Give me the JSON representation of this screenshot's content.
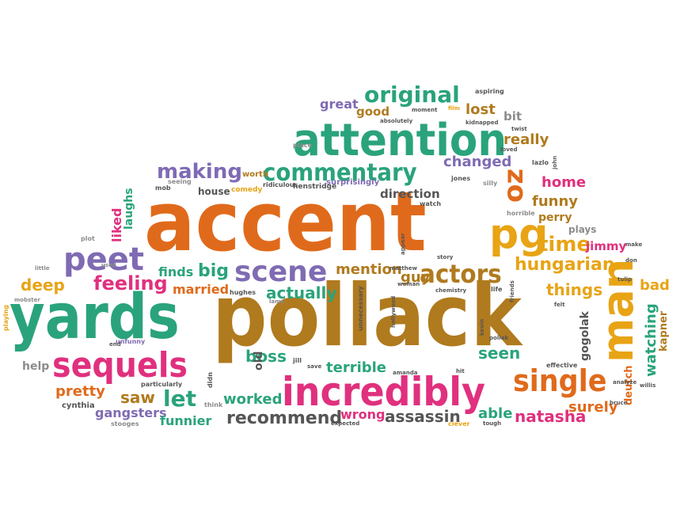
{
  "palette": {
    "orange": "#e06a1b",
    "teal": "#2aa37c",
    "pink": "#e0307e",
    "brown": "#b07a1e",
    "purple": "#7f6bb3",
    "gold": "#e8a415",
    "gray": "#8c8c8c",
    "dark": "#555555"
  },
  "words": {
    "accent": "accent",
    "pollack": "pollack",
    "yards": "yards",
    "attention": "attention",
    "incredibly": "incredibly",
    "sequels": "sequels",
    "man": "man",
    "commentary": "commentary",
    "original": "original",
    "actors": "actors",
    "single": "single",
    "peet": "peet",
    "scene": "scene",
    "pg": "pg",
    "oz": "oz",
    "time": "time",
    "making": "making",
    "hungarian": "hungarian",
    "feeling": "feeling",
    "deep": "deep",
    "big": "big",
    "finds": "finds",
    "married": "married",
    "actually": "actually",
    "mention": "mention",
    "guy": "guy",
    "things": "things",
    "seen": "seen",
    "let": "let",
    "saw": "saw",
    "pretty": "pretty",
    "gangsters": "gangsters",
    "funnier": "funnier",
    "recommend": "recommend",
    "worked": "worked",
    "boss": "boss",
    "terrible": "terrible",
    "wrong": "wrong",
    "assassin": "assassin",
    "natasha": "natasha",
    "able": "able",
    "surely": "surely",
    "watching": "watching",
    "kapner": "kapner",
    "deutch": "deutch",
    "gogolak": "gogolak",
    "bad": "bad",
    "jimmy": "jimmy",
    "perry": "perry",
    "plays": "plays",
    "funny": "funny",
    "home": "home",
    "changed": "changed",
    "really": "really",
    "lost": "lost",
    "bit": "bit",
    "great": "great",
    "good": "good",
    "direction": "direction",
    "liked": "liked",
    "laughs": "laughs",
    "help": "help",
    "cynthia": "cynthia",
    "old": "old",
    "surprisingly": "surprisingly",
    "house": "house",
    "worth": "worth",
    "comedy": "comedy",
    "ridiculous": "ridiculous",
    "henstridge": "henstridge",
    "seeing": "seeing",
    "mob": "mob",
    "jones": "jones",
    "silly": "silly",
    "watch": "watch",
    "laszlo": "lazlo",
    "john": "john",
    "horrible": "horrible",
    "absolutely": "absolutely",
    "moment": "moment",
    "aspiring": "aspiring",
    "film": "film",
    "kidnapped": "kidnapped",
    "twist": "twist",
    "loved": "loved",
    "place": "place",
    "plot": "plot",
    "used": "used",
    "little": "little",
    "mobster": "mobster",
    "playing": "playing",
    "unfunny": "unfunny",
    "end": "end",
    "particularly": "particularly",
    "stooges": "stooges",
    "didn": "didn",
    "think": "think",
    "jill": "jill",
    "save": "save",
    "amanda": "amanda",
    "hit": "hit",
    "expected": "expected",
    "clever": "clever",
    "tough": "tough",
    "hughes": "hughes",
    "lame": "lame",
    "unnecessary": "unnecessary",
    "hollywood": "hollywood",
    "matthew": "matthew",
    "appear": "appear",
    "woman": "woman",
    "story": "story",
    "chemistry": "chemistry",
    "life": "life",
    "friends": "friends",
    "kevin": "kevin",
    "pollak": "pollak",
    "effective": "effective",
    "analyze": "analyze",
    "willis": "willis",
    "bruce": "bruce",
    "felt": "felt",
    "tulip": "tulip",
    "make": "make",
    "don": "don"
  }
}
